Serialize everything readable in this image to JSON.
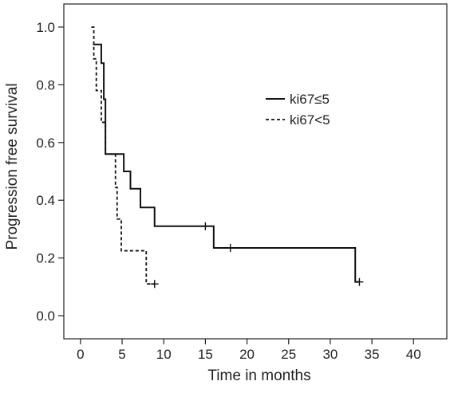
{
  "chart_data": {
    "type": "line",
    "subtype": "kaplan-meier step survival curves",
    "title": "",
    "xlabel": "Time in months",
    "ylabel": "Progression free survival",
    "xlim": [
      -2,
      44
    ],
    "ylim": [
      -0.08,
      1.08
    ],
    "xticks": [
      0,
      5,
      10,
      15,
      20,
      25,
      30,
      35,
      40
    ],
    "yticks": [
      0.0,
      0.2,
      0.4,
      0.6,
      0.8,
      1.0
    ],
    "ytick_labels": [
      "0.0",
      "0.2",
      "0.4",
      "0.6",
      "0.8",
      "1.0"
    ],
    "grid": false,
    "legend_position": "upper-right",
    "series": [
      {
        "name": "ki67≤5",
        "line_style": "solid",
        "color": "#111111",
        "steps": [
          [
            1.5,
            0.94
          ],
          [
            2.5,
            0.875
          ],
          [
            2.8,
            0.75
          ],
          [
            3.0,
            0.56
          ],
          [
            5.2,
            0.5
          ],
          [
            6.0,
            0.44
          ],
          [
            7.2,
            0.375
          ],
          [
            8.9,
            0.31
          ],
          [
            16.0,
            0.235
          ],
          [
            33.0,
            0.117
          ],
          [
            33.5,
            0.117
          ]
        ],
        "censored": [
          [
            15.0,
            0.31
          ],
          [
            18.0,
            0.235
          ],
          [
            33.5,
            0.117
          ]
        ]
      },
      {
        "name": "ki67<5",
        "line_style": "dashed",
        "color": "#111111",
        "steps": [
          [
            1.3,
            1.0
          ],
          [
            1.6,
            0.89
          ],
          [
            1.9,
            0.78
          ],
          [
            2.5,
            0.67
          ],
          [
            3.0,
            0.56
          ],
          [
            4.2,
            0.445
          ],
          [
            4.4,
            0.335
          ],
          [
            4.9,
            0.225
          ],
          [
            7.9,
            0.11
          ],
          [
            8.9,
            0.11
          ]
        ],
        "censored": [
          [
            8.9,
            0.11
          ]
        ]
      }
    ]
  }
}
